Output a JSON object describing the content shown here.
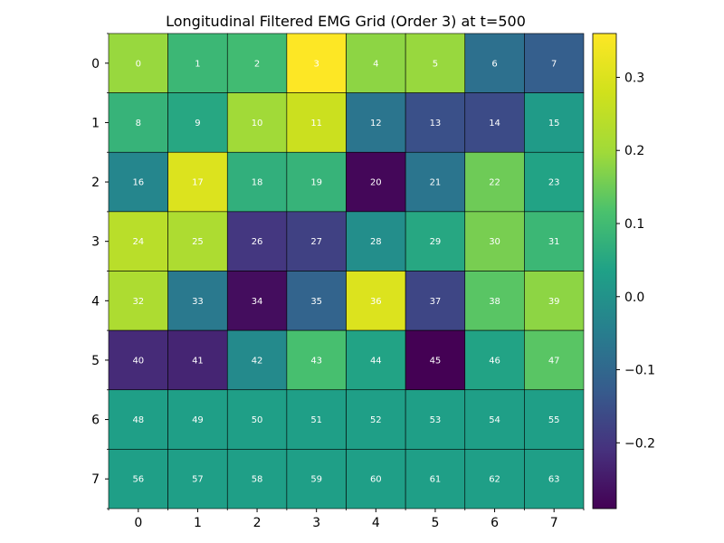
{
  "chart_data": {
    "type": "heatmap",
    "title": "Longitudinal Filtered EMG Grid (Order 3) at t=500",
    "xlabel": "",
    "ylabel": "",
    "colormap": "viridis",
    "vmin": -0.29,
    "vmax": 0.36,
    "x_ticks": [
      "0",
      "1",
      "2",
      "3",
      "4",
      "5",
      "6",
      "7"
    ],
    "y_ticks": [
      "0",
      "1",
      "2",
      "3",
      "4",
      "5",
      "6",
      "7"
    ],
    "colorbar_ticks": [
      {
        "value": 0.3,
        "label": "0.3"
      },
      {
        "value": 0.2,
        "label": "0.2"
      },
      {
        "value": 0.1,
        "label": "0.1"
      },
      {
        "value": 0.0,
        "label": "0.0"
      },
      {
        "value": -0.1,
        "label": "−0.1"
      },
      {
        "value": -0.2,
        "label": "−0.2"
      }
    ],
    "cell_labels": [
      [
        "0",
        "1",
        "2",
        "3",
        "4",
        "5",
        "6",
        "7"
      ],
      [
        "8",
        "9",
        "10",
        "11",
        "12",
        "13",
        "14",
        "15"
      ],
      [
        "16",
        "17",
        "18",
        "19",
        "20",
        "21",
        "22",
        "23"
      ],
      [
        "24",
        "25",
        "26",
        "27",
        "28",
        "29",
        "30",
        "31"
      ],
      [
        "32",
        "33",
        "34",
        "35",
        "36",
        "37",
        "38",
        "39"
      ],
      [
        "40",
        "41",
        "42",
        "43",
        "44",
        "45",
        "46",
        "47"
      ],
      [
        "48",
        "49",
        "50",
        "51",
        "52",
        "53",
        "54",
        "55"
      ],
      [
        "56",
        "57",
        "58",
        "59",
        "60",
        "61",
        "62",
        "63"
      ]
    ],
    "values": [
      [
        0.19,
        0.09,
        0.1,
        0.36,
        0.18,
        0.19,
        -0.08,
        -0.12
      ],
      [
        0.08,
        0.05,
        0.2,
        0.27,
        -0.07,
        -0.15,
        -0.16,
        0.02
      ],
      [
        -0.03,
        0.3,
        0.07,
        0.08,
        -0.28,
        -0.07,
        0.15,
        0.04
      ],
      [
        0.24,
        0.22,
        -0.2,
        -0.18,
        -0.01,
        0.05,
        0.16,
        0.09
      ],
      [
        0.22,
        -0.06,
        -0.27,
        -0.11,
        0.3,
        -0.17,
        0.13,
        0.18
      ],
      [
        -0.22,
        -0.23,
        -0.02,
        0.11,
        0.04,
        -0.29,
        0.04,
        0.13
      ],
      [
        0.03,
        0.03,
        0.03,
        0.03,
        0.03,
        0.03,
        0.03,
        0.03
      ],
      [
        0.03,
        0.03,
        0.03,
        0.03,
        0.03,
        0.03,
        0.03,
        0.03
      ]
    ]
  }
}
